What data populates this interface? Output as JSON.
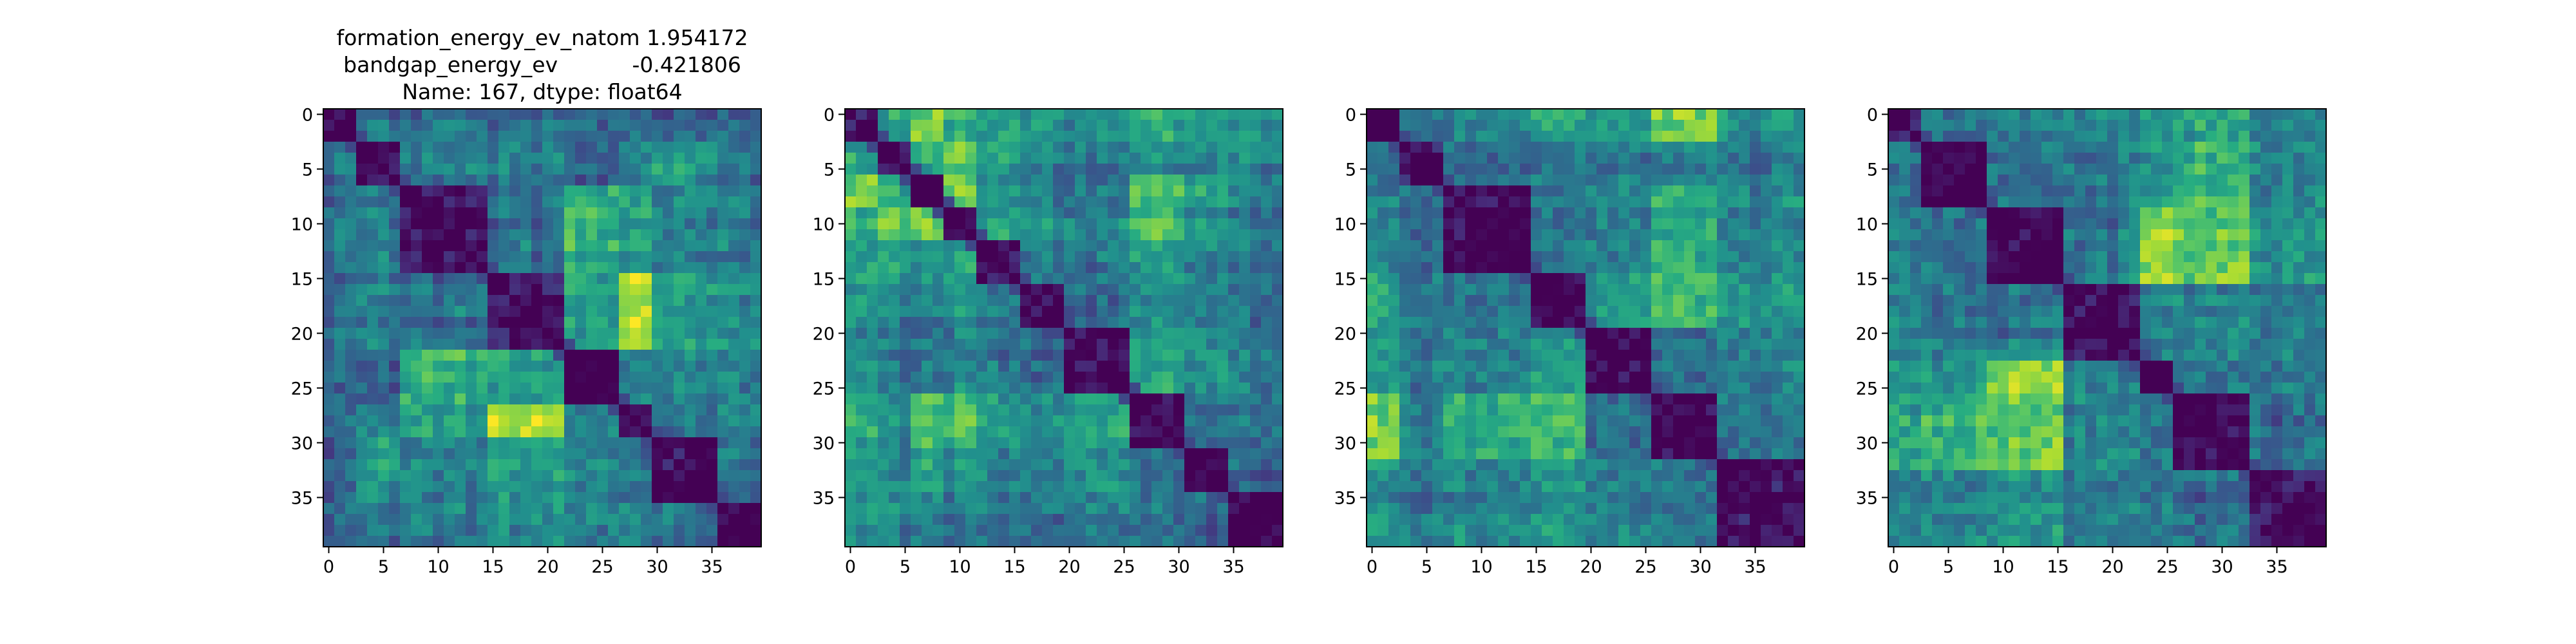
{
  "figure": {
    "title_lines": [
      "formation_energy_ev_natom    1.954172",
      "bandgap_energy_ev           -0.421806",
      "Name: 167, dtype: float64"
    ]
  },
  "chart_data": [
    {
      "type": "heatmap",
      "colormap": "viridis",
      "matrix_size": 40,
      "diagonal_value": 0,
      "xlim": [
        -0.5,
        39.5
      ],
      "ylim": [
        39.5,
        -0.5
      ],
      "xticks": [
        0,
        5,
        10,
        15,
        20,
        25,
        30,
        35
      ],
      "yticks": [
        0,
        5,
        10,
        15,
        20,
        25,
        30,
        35
      ],
      "blocks": [
        0,
        3,
        7,
        15,
        22,
        27,
        30,
        36,
        40
      ],
      "block_levels": [
        [
          0.0,
          0.32,
          0.35,
          0.3,
          0.3,
          0.32,
          0.32,
          0.3
        ],
        [
          0.32,
          0.0,
          0.4,
          0.42,
          0.35,
          0.4,
          0.55,
          0.38
        ],
        [
          0.35,
          0.4,
          0.0,
          0.38,
          0.62,
          0.55,
          0.45,
          0.42
        ],
        [
          0.3,
          0.42,
          0.38,
          0.0,
          0.55,
          0.85,
          0.55,
          0.48
        ],
        [
          0.3,
          0.35,
          0.62,
          0.55,
          0.0,
          0.45,
          0.5,
          0.45
        ],
        [
          0.32,
          0.4,
          0.55,
          0.85,
          0.45,
          0.0,
          0.4,
          0.45
        ],
        [
          0.32,
          0.55,
          0.45,
          0.55,
          0.5,
          0.4,
          0.0,
          0.38
        ],
        [
          0.3,
          0.38,
          0.42,
          0.48,
          0.45,
          0.45,
          0.38,
          0.0
        ]
      ]
    },
    {
      "type": "heatmap",
      "colormap": "viridis",
      "matrix_size": 40,
      "diagonal_value": 0,
      "xlim": [
        -0.5,
        39.5
      ],
      "ylim": [
        39.5,
        -0.5
      ],
      "xticks": [
        0,
        5,
        10,
        15,
        20,
        25,
        30,
        35
      ],
      "yticks": [
        0,
        5,
        10,
        15,
        20,
        25,
        30,
        35
      ],
      "blocks": [
        0,
        3,
        6,
        9,
        12,
        16,
        20,
        26,
        31,
        35,
        40
      ],
      "block_levels": [
        [
          0.0,
          0.55,
          0.7,
          0.6,
          0.55,
          0.5,
          0.45,
          0.55,
          0.55,
          0.5
        ],
        [
          0.55,
          0.0,
          0.6,
          0.75,
          0.55,
          0.45,
          0.4,
          0.5,
          0.5,
          0.45
        ],
        [
          0.7,
          0.6,
          0.0,
          0.8,
          0.5,
          0.45,
          0.4,
          0.7,
          0.6,
          0.45
        ],
        [
          0.6,
          0.75,
          0.8,
          0.0,
          0.55,
          0.5,
          0.45,
          0.65,
          0.55,
          0.4
        ],
        [
          0.55,
          0.55,
          0.5,
          0.55,
          0.0,
          0.4,
          0.4,
          0.55,
          0.5,
          0.4
        ],
        [
          0.5,
          0.45,
          0.45,
          0.5,
          0.4,
          0.0,
          0.35,
          0.5,
          0.45,
          0.38
        ],
        [
          0.45,
          0.4,
          0.4,
          0.45,
          0.4,
          0.35,
          0.0,
          0.55,
          0.5,
          0.4
        ],
        [
          0.55,
          0.5,
          0.7,
          0.65,
          0.55,
          0.5,
          0.55,
          0.0,
          0.4,
          0.4
        ],
        [
          0.55,
          0.5,
          0.6,
          0.55,
          0.5,
          0.45,
          0.5,
          0.4,
          0.0,
          0.35
        ],
        [
          0.5,
          0.45,
          0.45,
          0.4,
          0.4,
          0.38,
          0.4,
          0.4,
          0.35,
          0.0
        ]
      ]
    },
    {
      "type": "heatmap",
      "colormap": "viridis",
      "matrix_size": 40,
      "diagonal_value": 0,
      "xlim": [
        -0.5,
        39.5
      ],
      "ylim": [
        39.5,
        -0.5
      ],
      "xticks": [
        0,
        5,
        10,
        15,
        20,
        25,
        30,
        35
      ],
      "yticks": [
        0,
        5,
        10,
        15,
        20,
        25,
        30,
        35
      ],
      "blocks": [
        0,
        3,
        7,
        15,
        20,
        26,
        32,
        40
      ],
      "block_levels": [
        [
          0.0,
          0.35,
          0.45,
          0.6,
          0.55,
          0.8,
          0.5
        ],
        [
          0.35,
          0.0,
          0.35,
          0.4,
          0.4,
          0.45,
          0.4
        ],
        [
          0.45,
          0.35,
          0.0,
          0.4,
          0.45,
          0.65,
          0.45
        ],
        [
          0.6,
          0.4,
          0.4,
          0.0,
          0.55,
          0.7,
          0.5
        ],
        [
          0.55,
          0.4,
          0.45,
          0.55,
          0.0,
          0.4,
          0.45
        ],
        [
          0.8,
          0.45,
          0.65,
          0.7,
          0.4,
          0.0,
          0.4
        ],
        [
          0.5,
          0.4,
          0.45,
          0.5,
          0.45,
          0.4,
          0.0
        ]
      ]
    },
    {
      "type": "heatmap",
      "colormap": "viridis",
      "matrix_size": 40,
      "diagonal_value": 0,
      "xlim": [
        -0.5,
        39.5
      ],
      "ylim": [
        39.5,
        -0.5
      ],
      "xticks": [
        0,
        5,
        10,
        15,
        20,
        25,
        30,
        35
      ],
      "yticks": [
        0,
        5,
        10,
        15,
        20,
        25,
        30,
        35
      ],
      "blocks": [
        0,
        3,
        9,
        16,
        23,
        26,
        33,
        40
      ],
      "block_levels": [
        [
          0.0,
          0.4,
          0.45,
          0.45,
          0.55,
          0.6,
          0.45
        ],
        [
          0.4,
          0.0,
          0.4,
          0.4,
          0.55,
          0.65,
          0.45
        ],
        [
          0.45,
          0.4,
          0.0,
          0.4,
          0.85,
          0.75,
          0.5
        ],
        [
          0.45,
          0.4,
          0.4,
          0.0,
          0.45,
          0.45,
          0.4
        ],
        [
          0.55,
          0.55,
          0.85,
          0.45,
          0.0,
          0.4,
          0.4
        ],
        [
          0.6,
          0.65,
          0.75,
          0.45,
          0.4,
          0.0,
          0.35
        ],
        [
          0.45,
          0.45,
          0.5,
          0.4,
          0.4,
          0.35,
          0.0
        ]
      ]
    }
  ]
}
